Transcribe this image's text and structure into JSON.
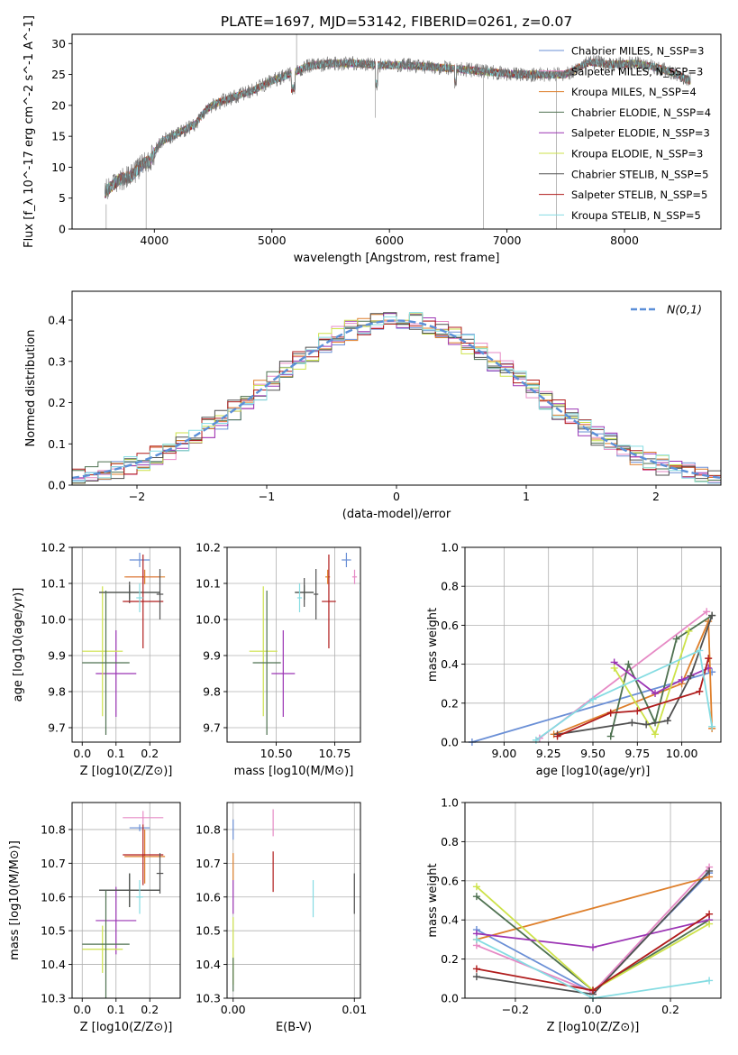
{
  "title": "PLATE=1697, MJD=53142, FIBERID=0261, z=0.07",
  "colors": {
    "Chabrier MILES": "#6a8fd6",
    "Salpeter MILES": "#e68ac5",
    "Kroupa MILES": "#de7f2b",
    "Chabrier ELODIE": "#4e7150",
    "Salpeter ELODIE": "#9b34b4",
    "Kroupa ELODIE": "#cde24a",
    "Chabrier STELIB": "#505050",
    "Salpeter STELIB": "#b01c1c",
    "Kroupa STELIB": "#85dce2"
  },
  "chart_data": [
    {
      "type": "line",
      "name": "spectrum",
      "xlabel": "wavelength [Angstrom, rest frame]",
      "ylabel": "Flux [f_λ 10^-17 erg cm^-2 s^-1 A^-1]",
      "xlim": [
        3300,
        8820
      ],
      "ylim": [
        0,
        31.5
      ],
      "xticks": [
        4000,
        5000,
        6000,
        7000,
        8000
      ],
      "yticks": [
        0,
        5,
        10,
        15,
        20,
        25,
        30
      ],
      "grid": false,
      "legend_position": "upper-right",
      "legend": [
        "Chabrier MILES, N_SSP=3",
        "Salpeter MILES, N_SSP=3",
        "Kroupa MILES, N_SSP=4",
        "Chabrier ELODIE, N_SSP=4",
        "Salpeter ELODIE, N_SSP=3",
        "Kroupa ELODIE, N_SSP=3",
        "Chabrier STELIB, N_SSP=5",
        "Salpeter STELIB, N_SSP=5",
        "Kroupa STELIB, N_SSP=5"
      ],
      "continuum": [
        [
          3580,
          6
        ],
        [
          3700,
          8
        ],
        [
          3800,
          8.5
        ],
        [
          3900,
          10.5
        ],
        [
          3960,
          11
        ],
        [
          4050,
          14
        ],
        [
          4150,
          15
        ],
        [
          4250,
          16
        ],
        [
          4350,
          17
        ],
        [
          4450,
          19.5
        ],
        [
          4550,
          20.5
        ],
        [
          4700,
          21.5
        ],
        [
          4850,
          22.5
        ],
        [
          5000,
          24
        ],
        [
          5150,
          25
        ],
        [
          5300,
          26.3
        ],
        [
          5500,
          26.8
        ],
        [
          5700,
          26.8
        ],
        [
          5900,
          26.5
        ],
        [
          6100,
          26.5
        ],
        [
          6300,
          26.3
        ],
        [
          6500,
          26
        ],
        [
          6700,
          25.7
        ],
        [
          6900,
          25.3
        ],
        [
          7100,
          25
        ],
        [
          7300,
          25
        ],
        [
          7500,
          25
        ],
        [
          7700,
          27
        ],
        [
          7900,
          26.6
        ],
        [
          8100,
          26.8
        ],
        [
          8300,
          26
        ],
        [
          8450,
          25
        ],
        [
          8550,
          24
        ]
      ]
    },
    {
      "type": "bar",
      "name": "residual histogram",
      "xlabel": "(data-model)/error",
      "ylabel": "Normed distribution",
      "xlim": [
        -2.5,
        2.5
      ],
      "ylim": [
        0,
        0.47
      ],
      "xticks": [
        -2,
        -1,
        0,
        1,
        2
      ],
      "yticks": [
        0.0,
        0.1,
        0.2,
        0.3,
        0.4
      ],
      "grid": true,
      "legend_position": "upper-right",
      "legend": [
        "N(0,1)"
      ]
    },
    {
      "type": "scatter",
      "name": "age vs Z",
      "xlabel": "Z [log10(Z/Z⊙)]",
      "ylabel": "age [log10(age/yr)]",
      "xlim": [
        -0.03,
        0.29
      ],
      "ylim": [
        9.66,
        10.2
      ],
      "xticks": [
        0.0,
        0.1,
        0.2
      ],
      "yticks": [
        9.7,
        9.8,
        9.9,
        10.0,
        10.1,
        10.2
      ],
      "points": [
        {
          "model": "Chabrier MILES",
          "x": 0.17,
          "xerr": 0.03,
          "y": 10.165,
          "yerr": 0.02
        },
        {
          "model": "Salpeter MILES",
          "x": 0.18,
          "xerr": 0.05,
          "y": 10.118,
          "yerr": 0.02
        },
        {
          "model": "Kroupa MILES",
          "x": 0.185,
          "xerr": 0.06,
          "y": 10.118,
          "yerr": 0.02
        },
        {
          "model": "Chabrier ELODIE",
          "x": 0.14,
          "xerr": 0.09,
          "y": 10.075,
          "yerr": 0.02
        },
        {
          "model": "Salpeter ELODIE",
          "x": 0.1,
          "xerr": 0.06,
          "y": 9.85,
          "yerr": 0.12
        },
        {
          "model": "Kroupa ELODIE",
          "x": 0.06,
          "xerr": 0.06,
          "y": 9.912,
          "yerr": 0.18
        },
        {
          "model": "Chabrier STELIB",
          "x": 0.14,
          "xerr": 0.09,
          "y": 10.075,
          "yerr": 0.03
        },
        {
          "model": "Salpeter STELIB",
          "x": 0.18,
          "xerr": 0.06,
          "y": 10.05,
          "yerr": 0.13
        },
        {
          "model": "Kroupa STELIB",
          "x": 0.17,
          "xerr": 0.01,
          "y": 10.06,
          "yerr": 0.04
        },
        {
          "model": "Chabrier ELODIE",
          "x": 0.07,
          "xerr": 0.07,
          "y": 9.88,
          "yerr": 0.2
        },
        {
          "model": "Chabrier STELIB",
          "x": 0.23,
          "xerr": 0.01,
          "y": 10.07,
          "yerr": 0.07
        }
      ]
    },
    {
      "type": "scatter",
      "name": "age vs mass",
      "xlabel": "mass [log10(M/M⊙)]",
      "ylabel": "",
      "xlim": [
        10.29,
        10.86
      ],
      "ylim": [
        9.66,
        10.2
      ],
      "xticks": [
        10.5,
        10.75
      ],
      "yticks": [
        9.7,
        9.8,
        9.9,
        10.0,
        10.1,
        10.2
      ],
      "points": [
        {
          "model": "Chabrier MILES",
          "x": 10.8,
          "xerr": 0.02,
          "y": 10.165,
          "yerr": 0.02
        },
        {
          "model": "Salpeter MILES",
          "x": 10.835,
          "xerr": 0.01,
          "y": 10.118,
          "yerr": 0.02
        },
        {
          "model": "Kroupa MILES",
          "x": 10.72,
          "xerr": 0.01,
          "y": 10.118,
          "yerr": 0.02
        },
        {
          "model": "Chabrier ELODIE",
          "x": 10.62,
          "xerr": 0.04,
          "y": 10.075,
          "yerr": 0.02
        },
        {
          "model": "Salpeter ELODIE",
          "x": 10.53,
          "xerr": 0.05,
          "y": 9.85,
          "yerr": 0.12
        },
        {
          "model": "Kroupa ELODIE",
          "x": 10.445,
          "xerr": 0.06,
          "y": 9.912,
          "yerr": 0.18
        },
        {
          "model": "Chabrier STELIB",
          "x": 10.62,
          "xerr": 0.04,
          "y": 10.075,
          "yerr": 0.04
        },
        {
          "model": "Salpeter STELIB",
          "x": 10.725,
          "xerr": 0.03,
          "y": 10.05,
          "yerr": 0.13
        },
        {
          "model": "Kroupa STELIB",
          "x": 10.6,
          "xerr": 0.01,
          "y": 10.06,
          "yerr": 0.04
        },
        {
          "model": "Chabrier ELODIE",
          "x": 10.46,
          "xerr": 0.06,
          "y": 9.88,
          "yerr": 0.2
        },
        {
          "model": "Chabrier STELIB",
          "x": 10.67,
          "xerr": 0.01,
          "y": 10.07,
          "yerr": 0.07
        }
      ]
    },
    {
      "type": "line",
      "name": "mass weight vs age",
      "xlabel": "age [log10(age/yr)]",
      "ylabel": "mass weight",
      "xlim": [
        8.78,
        10.22
      ],
      "ylim": [
        0,
        1.0
      ],
      "xticks": [
        9.0,
        9.25,
        9.5,
        9.75,
        10.0
      ],
      "yticks": [
        0.0,
        0.2,
        0.4,
        0.6,
        0.8,
        1.0
      ],
      "grid": true,
      "series": [
        {
          "model": "Chabrier MILES",
          "points": [
            [
              8.82,
              0.0
            ],
            [
              10.17,
              0.36
            ]
          ]
        },
        {
          "model": "Salpeter MILES",
          "points": [
            [
              9.2,
              0.02
            ],
            [
              10.14,
              0.67
            ]
          ]
        },
        {
          "model": "Kroupa MILES",
          "points": [
            [
              9.28,
              0.04
            ],
            [
              10.0,
              0.3
            ],
            [
              10.15,
              0.62
            ],
            [
              10.17,
              0.07
            ]
          ]
        },
        {
          "model": "Chabrier ELODIE",
          "points": [
            [
              9.6,
              0.03
            ],
            [
              9.7,
              0.4
            ],
            [
              9.85,
              0.1
            ],
            [
              9.97,
              0.53
            ],
            [
              10.17,
              0.65
            ]
          ]
        },
        {
          "model": "Salpeter ELODIE",
          "points": [
            [
              9.62,
              0.41
            ],
            [
              9.85,
              0.25
            ],
            [
              10.0,
              0.32
            ],
            [
              10.15,
              0.38
            ]
          ]
        },
        {
          "model": "Kroupa ELODIE",
          "points": [
            [
              9.62,
              0.38
            ],
            [
              9.85,
              0.04
            ],
            [
              10.04,
              0.57
            ]
          ]
        },
        {
          "model": "Chabrier STELIB",
          "points": [
            [
              9.3,
              0.04
            ],
            [
              9.72,
              0.1
            ],
            [
              9.8,
              0.09
            ],
            [
              9.92,
              0.11
            ],
            [
              10.05,
              0.34
            ],
            [
              10.17,
              0.65
            ]
          ]
        },
        {
          "model": "Salpeter STELIB",
          "points": [
            [
              9.3,
              0.03
            ],
            [
              9.6,
              0.15
            ],
            [
              9.75,
              0.16
            ],
            [
              10.1,
              0.26
            ],
            [
              10.15,
              0.43
            ]
          ]
        },
        {
          "model": "Kroupa STELIB",
          "points": [
            [
              9.18,
              0.01
            ],
            [
              9.5,
              0.22
            ],
            [
              10.1,
              0.47
            ],
            [
              10.17,
              0.08
            ]
          ]
        }
      ]
    },
    {
      "type": "scatter",
      "name": "mass vs Z",
      "xlabel": "Z [log10(Z/Z⊙)]",
      "ylabel": "mass [log10(M/M⊙)]",
      "xlim": [
        -0.03,
        0.29
      ],
      "ylim": [
        10.3,
        10.88
      ],
      "xticks": [
        0.0,
        0.1,
        0.2
      ],
      "yticks": [
        10.3,
        10.4,
        10.5,
        10.6,
        10.7,
        10.8
      ],
      "points": [
        {
          "model": "Chabrier MILES",
          "x": 0.17,
          "xerr": 0.03,
          "y": 10.805,
          "yerr": 0.01
        },
        {
          "model": "Salpeter MILES",
          "x": 0.18,
          "xerr": 0.06,
          "y": 10.835,
          "yerr": 0.02
        },
        {
          "model": "Kroupa MILES",
          "x": 0.185,
          "xerr": 0.06,
          "y": 10.72,
          "yerr": 0.08
        },
        {
          "model": "Chabrier ELODIE",
          "x": 0.14,
          "xerr": 0.09,
          "y": 10.62,
          "yerr": 0.05
        },
        {
          "model": "Salpeter ELODIE",
          "x": 0.1,
          "xerr": 0.06,
          "y": 10.53,
          "yerr": 0.1
        },
        {
          "model": "Kroupa ELODIE",
          "x": 0.06,
          "xerr": 0.06,
          "y": 10.445,
          "yerr": 0.07
        },
        {
          "model": "Chabrier STELIB",
          "x": 0.14,
          "xerr": 0.09,
          "y": 10.62,
          "yerr": 0.05
        },
        {
          "model": "Salpeter STELIB",
          "x": 0.18,
          "xerr": 0.06,
          "y": 10.725,
          "yerr": 0.09
        },
        {
          "model": "Kroupa STELIB",
          "x": 0.17,
          "xerr": 0.01,
          "y": 10.6,
          "yerr": 0.05
        },
        {
          "model": "Chabrier ELODIE",
          "x": 0.07,
          "xerr": 0.07,
          "y": 10.46,
          "yerr": 0.16
        },
        {
          "model": "Chabrier STELIB",
          "x": 0.23,
          "xerr": 0.01,
          "y": 10.67,
          "yerr": 0.06
        }
      ]
    },
    {
      "type": "scatter",
      "name": "mass vs E(B-V)",
      "xlabel": "E(B-V)",
      "ylabel": "",
      "xlim": [
        -0.0005,
        0.0105
      ],
      "ylim": [
        10.3,
        10.88
      ],
      "xticks": [
        0.0,
        0.01
      ],
      "yticks": [
        10.3,
        10.4,
        10.5,
        10.6,
        10.7,
        10.8
      ],
      "points": [
        {
          "model": "Chabrier MILES",
          "x": 0.0,
          "y": 10.8,
          "yerr": 0.03
        },
        {
          "model": "Salpeter MILES",
          "x": 0.0033,
          "y": 10.82,
          "yerr": 0.04
        },
        {
          "model": "Kroupa MILES",
          "x": 0.0,
          "y": 10.69,
          "yerr": 0.04
        },
        {
          "model": "Salpeter ELODIE",
          "x": 0.0,
          "y": 10.6,
          "yerr": 0.05
        },
        {
          "model": "Kroupa ELODIE",
          "x": 0.0,
          "y": 10.44,
          "yerr": 0.1
        },
        {
          "model": "Chabrier ELODIE",
          "x": 0.0,
          "y": 10.37,
          "yerr": 0.05
        },
        {
          "model": "Salpeter STELIB",
          "x": 0.0033,
          "y": 10.675,
          "yerr": 0.06
        },
        {
          "model": "Kroupa STELIB",
          "x": 0.0066,
          "y": 10.595,
          "yerr": 0.055
        },
        {
          "model": "Chabrier STELIB",
          "x": 0.01,
          "y": 10.61,
          "yerr": 0.06
        }
      ]
    },
    {
      "type": "line",
      "name": "mass weight vs Z",
      "xlabel": "Z [log10(Z/Z⊙)]",
      "ylabel": "mass weight",
      "xlim": [
        -0.33,
        0.33
      ],
      "ylim": [
        0,
        1.0
      ],
      "xticks": [
        -0.2,
        0.0,
        0.2
      ],
      "yticks": [
        0.0,
        0.2,
        0.4,
        0.6,
        0.8,
        1.0
      ],
      "grid": true,
      "series": [
        {
          "model": "Chabrier MILES",
          "points": [
            [
              -0.3,
              0.35
            ],
            [
              0.0,
              0.03
            ],
            [
              0.3,
              0.64
            ]
          ]
        },
        {
          "model": "Salpeter MILES",
          "points": [
            [
              -0.3,
              0.27
            ],
            [
              0.0,
              0.03
            ],
            [
              0.3,
              0.67
            ]
          ]
        },
        {
          "model": "Kroupa MILES",
          "points": [
            [
              -0.3,
              0.3
            ],
            [
              0.3,
              0.62
            ]
          ]
        },
        {
          "model": "Chabrier ELODIE",
          "points": [
            [
              -0.3,
              0.52
            ],
            [
              0.0,
              0.04
            ],
            [
              0.3,
              0.4
            ]
          ]
        },
        {
          "model": "Salpeter ELODIE",
          "points": [
            [
              -0.3,
              0.33
            ],
            [
              0.0,
              0.26
            ],
            [
              0.3,
              0.4
            ]
          ]
        },
        {
          "model": "Kroupa ELODIE",
          "points": [
            [
              -0.3,
              0.57
            ],
            [
              0.0,
              0.04
            ],
            [
              0.3,
              0.38
            ]
          ]
        },
        {
          "model": "Chabrier STELIB",
          "points": [
            [
              -0.3,
              0.11
            ],
            [
              0.0,
              0.02
            ],
            [
              0.3,
              0.65
            ]
          ]
        },
        {
          "model": "Salpeter STELIB",
          "points": [
            [
              -0.3,
              0.15
            ],
            [
              0.0,
              0.04
            ],
            [
              0.3,
              0.43
            ]
          ]
        },
        {
          "model": "Kroupa STELIB",
          "points": [
            [
              -0.3,
              0.3
            ],
            [
              0.0,
              0.0
            ],
            [
              0.3,
              0.09
            ]
          ]
        }
      ]
    }
  ]
}
